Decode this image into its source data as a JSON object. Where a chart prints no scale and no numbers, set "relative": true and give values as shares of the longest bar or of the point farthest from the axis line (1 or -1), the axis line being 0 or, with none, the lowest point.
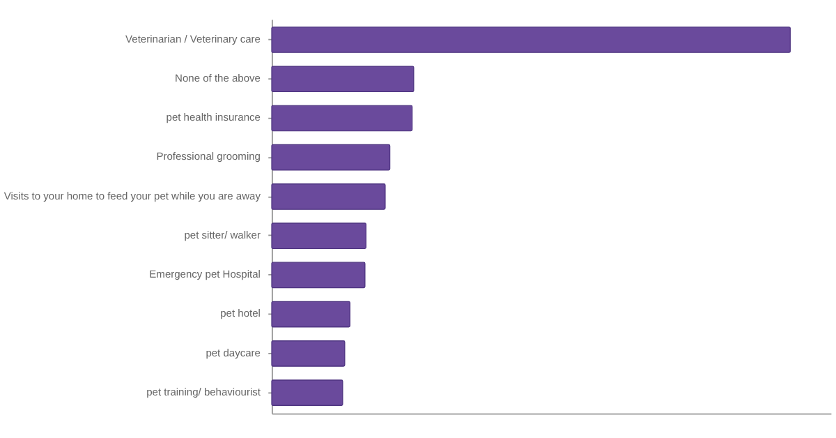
{
  "chart_data": {
    "type": "bar",
    "orientation": "horizontal",
    "relative": true,
    "categories": [
      "Veterinarian / Veterinary care",
      "None of the above",
      "pet health insurance",
      "Professional grooming",
      "Visits to your home to feed your pet while you are away",
      "pet sitter/ walker",
      "Emergency pet Hospital",
      "pet hotel",
      "pet daycare",
      "pet training/ behaviourist"
    ],
    "values": [
      1,
      0.274,
      0.271,
      0.228,
      0.219,
      0.182,
      0.18,
      0.151,
      0.141,
      0.137
    ],
    "color": "#6a4a9c",
    "grid": false
  }
}
